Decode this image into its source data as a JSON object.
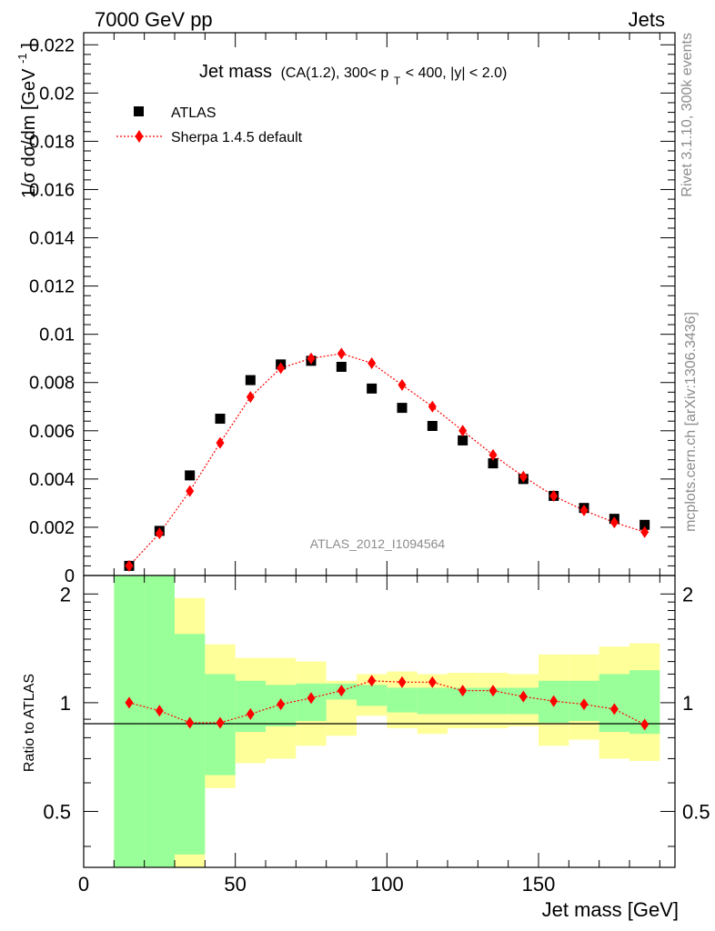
{
  "header": {
    "left": "7000 GeV pp",
    "right": "Jets"
  },
  "side": {
    "rivet": "Rivet 3.1.10,  300k events",
    "mcplots": "mcplots.cern.ch [arXiv:1306.3436]"
  },
  "colors": {
    "data": "#000000",
    "mc": "#ff0000",
    "band_inner": "#99ff99",
    "band_outer": "#ffff99"
  },
  "chart_data": [
    {
      "type": "scatter",
      "title_main": "Jet mass",
      "title_sub": "(CA(1.2), 300< p",
      "title_sub_index": "T",
      "title_sub_tail": " < 400, |y| < 2.0)",
      "watermark": "ATLAS_2012_I1094564",
      "ylabel": "1/σ dσ/dm [GeV",
      "ylabel_exp": "-1",
      "ylabel_close": "]",
      "xlim": [
        0,
        195
      ],
      "ylim": [
        0,
        0.0225
      ],
      "yticks": [
        0.002,
        0.004,
        0.006,
        0.008,
        0.01,
        0.012,
        0.014,
        0.016,
        0.018,
        0.02,
        0.022
      ],
      "ytick_labels": [
        "0.002",
        "0.004",
        "0.006",
        "0.008",
        "0.01",
        "0.012",
        "0.014",
        "0.016",
        "0.018",
        "0.02",
        "0.022"
      ],
      "ytick_zero": "0",
      "x": [
        15,
        25,
        35,
        45,
        55,
        65,
        75,
        85,
        95,
        105,
        115,
        125,
        135,
        145,
        155,
        165,
        175,
        185
      ],
      "series": [
        {
          "name": "ATLAS",
          "marker": "square",
          "values": [
            0.0004,
            0.00185,
            0.00415,
            0.0065,
            0.0081,
            0.00875,
            0.0089,
            0.00865,
            0.00775,
            0.00695,
            0.0062,
            0.0056,
            0.00465,
            0.004,
            0.0033,
            0.0028,
            0.00235,
            0.0021
          ]
        },
        {
          "name": "Sherpa 1.4.5 default",
          "marker": "diamond",
          "values": [
            0.0004,
            0.00175,
            0.0035,
            0.0055,
            0.0074,
            0.0086,
            0.009,
            0.0092,
            0.0088,
            0.0079,
            0.007,
            0.006,
            0.005,
            0.0041,
            0.0033,
            0.0027,
            0.0022,
            0.0018
          ]
        }
      ],
      "legend": [
        "ATLAS",
        "Sherpa 1.4.5 default"
      ]
    },
    {
      "type": "line",
      "ylabel": "Ratio to ATLAS",
      "xlabel": "Jet mass [GeV]",
      "xlim": [
        0,
        195
      ],
      "ylim": [
        0.35,
        2.25
      ],
      "xticks": [
        0,
        50,
        100,
        150
      ],
      "xtick_labels": [
        "0",
        "50",
        "100",
        "150"
      ],
      "yticks": [
        0.5,
        1,
        2
      ],
      "ytick_labels": [
        "0.5",
        "1",
        "2"
      ],
      "x": [
        15,
        25,
        35,
        45,
        55,
        65,
        75,
        85,
        95,
        105,
        115,
        125,
        135,
        145,
        155,
        165,
        175,
        185
      ],
      "ratio": [
        1.0,
        0.95,
        0.88,
        0.88,
        0.93,
        0.99,
        1.03,
        1.08,
        1.15,
        1.14,
        1.14,
        1.08,
        1.08,
        1.04,
        1.01,
        0.99,
        0.96,
        0.87
      ],
      "bin_edges": [
        10,
        20,
        30,
        40,
        50,
        60,
        70,
        80,
        90,
        100,
        110,
        120,
        130,
        140,
        150,
        160,
        170,
        180,
        190
      ],
      "band_inner": [
        [
          0.3,
          2.3
        ],
        [
          0.3,
          2.3
        ],
        [
          0.38,
          1.55
        ],
        [
          0.63,
          1.2
        ],
        [
          0.83,
          1.15
        ],
        [
          0.86,
          1.12
        ],
        [
          0.89,
          1.13
        ],
        [
          1.02,
          1.13
        ],
        [
          0.98,
          1.12
        ],
        [
          0.94,
          1.1
        ],
        [
          0.93,
          1.1
        ],
        [
          0.93,
          1.1
        ],
        [
          0.93,
          1.1
        ],
        [
          0.93,
          1.1
        ],
        [
          0.88,
          1.15
        ],
        [
          0.89,
          1.15
        ],
        [
          0.83,
          1.2
        ],
        [
          0.82,
          1.23
        ]
      ],
      "band_outer": [
        [
          0.3,
          2.3
        ],
        [
          0.3,
          2.3
        ],
        [
          0.3,
          1.95
        ],
        [
          0.58,
          1.45
        ],
        [
          0.68,
          1.33
        ],
        [
          0.7,
          1.33
        ],
        [
          0.76,
          1.3
        ],
        [
          0.81,
          1.15
        ],
        [
          0.92,
          1.2
        ],
        [
          0.85,
          1.22
        ],
        [
          0.82,
          1.2
        ],
        [
          0.85,
          1.21
        ],
        [
          0.85,
          1.21
        ],
        [
          0.86,
          1.2
        ],
        [
          0.76,
          1.36
        ],
        [
          0.79,
          1.36
        ],
        [
          0.7,
          1.43
        ],
        [
          0.69,
          1.46
        ]
      ]
    }
  ]
}
